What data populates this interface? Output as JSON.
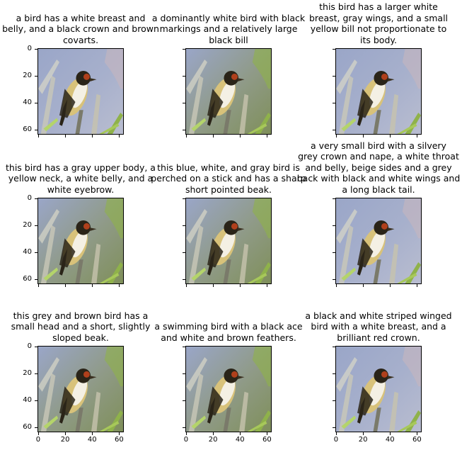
{
  "panels": [
    {
      "title": "a bird has a white breast and\nbelly, and a black crown and brown\ncovarts.",
      "show_yticks": true,
      "show_xticks": false
    },
    {
      "title": "a dominantly white bird with black\nmarkings and a relatively large\nblack bill",
      "show_yticks": false,
      "show_xticks": false
    },
    {
      "title": "this bird has a larger white\nbreast, gray wings, and a small\nyellow bill not proportionate to\nits body.",
      "show_yticks": false,
      "show_xticks": false
    },
    {
      "title": "this bird has a gray upper body, a\nyellow neck, a white belly, and a\nwhite eyebrow.",
      "show_yticks": true,
      "show_xticks": false
    },
    {
      "title": "this blue, white, and gray bird is\nperched on a stick and has a sharp\nshort pointed beak.",
      "show_yticks": false,
      "show_xticks": false
    },
    {
      "title": "a very small bird with a silvery\ngrey crown and nape, a white throat\nand belly, beige sides and a grey\nback with black and white wings and\na long black tail.",
      "show_yticks": false,
      "show_xticks": false
    },
    {
      "title": "this grey and brown bird has a\nsmall head and a short, slightly\nsloped beak.",
      "show_yticks": true,
      "show_xticks": true
    },
    {
      "title": "a swimming bird with a black ace\nand white and brown feathers.",
      "show_yticks": false,
      "show_xticks": true
    },
    {
      "title": "a black and white striped winged\nbird with a white breast, and a\nbrilliant red crown.",
      "show_yticks": false,
      "show_xticks": true
    }
  ],
  "yticks": [
    "0",
    "20",
    "40",
    "60"
  ],
  "xticks": [
    "0",
    "20",
    "40",
    "60"
  ],
  "colors": {
    "sky": "#9aa6c8",
    "foliage": "#8fb24a",
    "bird_body": "#d8c27a",
    "bird_dark": "#2a2418",
    "breast": "#f4f0e4",
    "crown_red": "#b0401c"
  }
}
